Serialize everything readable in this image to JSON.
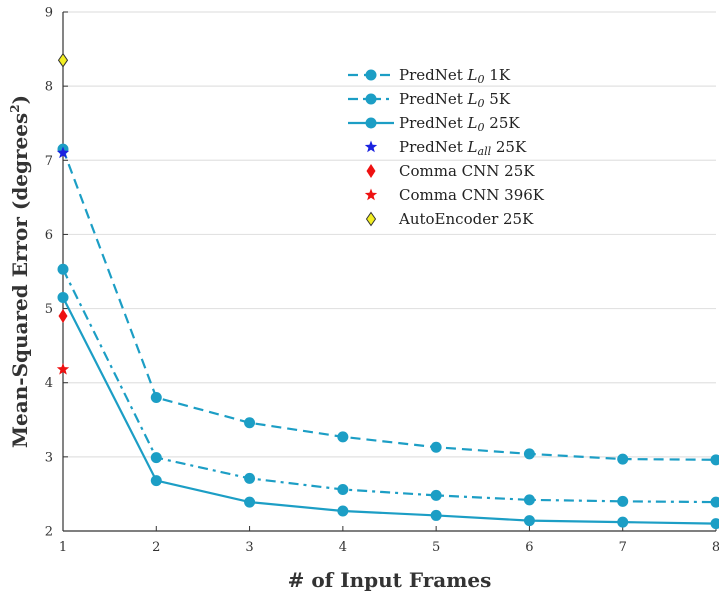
{
  "chart_data": {
    "type": "line",
    "title": "",
    "xlabel": "# of Input Frames",
    "ylabel": "Mean-Squared Error (degrees²)",
    "ylabel_parts": {
      "main": "Mean-Squared Error (degrees",
      "sup": "2",
      "close": ")"
    },
    "xlim": [
      1,
      8
    ],
    "ylim": [
      2,
      9
    ],
    "xticks": [
      1,
      2,
      3,
      4,
      5,
      6,
      7,
      8
    ],
    "yticks": [
      2,
      3,
      4,
      5,
      6,
      7,
      8,
      9
    ],
    "grid": "horizontal",
    "legend_position": "top-right",
    "series": [
      {
        "name": "PredNet L0 1K",
        "label_main": "PredNet ",
        "label_italic": "L",
        "label_sub": "0",
        "label_tail": " 1K",
        "color": "#1c9ec5",
        "line_style": "dashed",
        "marker": "circle",
        "x": [
          1,
          2,
          3,
          4,
          5,
          6,
          7,
          8
        ],
        "y": [
          7.15,
          3.8,
          3.46,
          3.27,
          3.13,
          3.04,
          2.97,
          2.96
        ]
      },
      {
        "name": "PredNet L0 5K",
        "label_main": "PredNet ",
        "label_italic": "L",
        "label_sub": "0",
        "label_tail": " 5K",
        "color": "#1c9ec5",
        "line_style": "dashdot",
        "marker": "circle",
        "x": [
          1,
          2,
          3,
          4,
          5,
          6,
          7,
          8
        ],
        "y": [
          5.53,
          2.99,
          2.71,
          2.56,
          2.48,
          2.42,
          2.4,
          2.39
        ]
      },
      {
        "name": "PredNet L0 25K",
        "label_main": "PredNet ",
        "label_italic": "L",
        "label_sub": "0",
        "label_tail": " 25K",
        "color": "#1c9ec5",
        "line_style": "solid",
        "marker": "circle",
        "x": [
          1,
          2,
          3,
          4,
          5,
          6,
          7,
          8
        ],
        "y": [
          5.15,
          2.68,
          2.39,
          2.27,
          2.21,
          2.14,
          2.12,
          2.1
        ]
      },
      {
        "name": "PredNet Lall 25K",
        "label_main": "PredNet ",
        "label_italic": "L",
        "label_sub": "all",
        "label_tail": " 25K",
        "color": "#1a22e0",
        "line_style": "none",
        "marker": "star",
        "x": [
          1
        ],
        "y": [
          7.1
        ]
      },
      {
        "name": "Comma CNN 25K",
        "label_main": "Comma CNN 25K",
        "color": "#ee1111",
        "line_style": "none",
        "marker": "diamond",
        "x": [
          1
        ],
        "y": [
          4.9
        ]
      },
      {
        "name": "Comma CNN 396K",
        "label_main": "Comma CNN 396K",
        "color": "#ee1111",
        "line_style": "none",
        "marker": "star",
        "x": [
          1
        ],
        "y": [
          4.18
        ]
      },
      {
        "name": "AutoEncoder 25K",
        "label_main": "AutoEncoder 25K",
        "color": "#f2ee22",
        "stroke": "#333333",
        "line_style": "none",
        "marker": "diamond-outline",
        "x": [
          1
        ],
        "y": [
          8.35
        ]
      }
    ]
  }
}
